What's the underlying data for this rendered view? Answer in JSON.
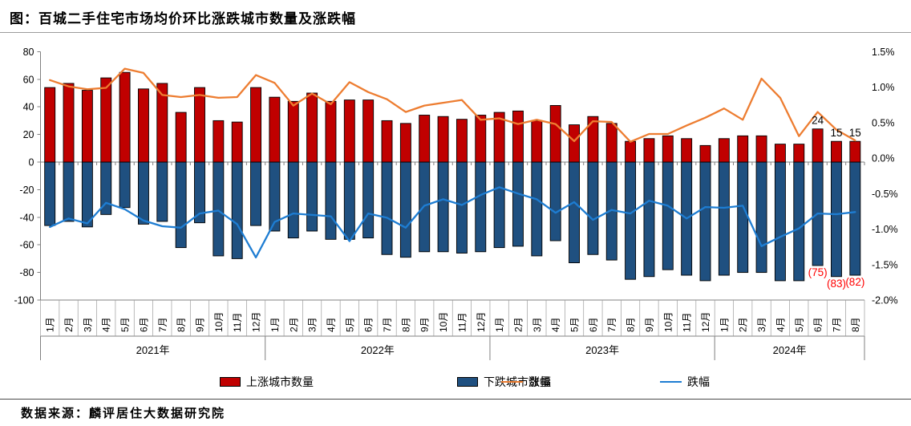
{
  "title": "图：百城二手住宅市场均价环比涨跌城市数量及涨跌幅",
  "source": "数据来源：麟评居住大数据研究院",
  "legend": [
    {
      "label": "上涨城市数量",
      "type": "swatch",
      "color": "#C00000"
    },
    {
      "label": "下跌城市数量",
      "type": "swatch",
      "color": "#1F5080"
    },
    {
      "label": "涨幅",
      "type": "line",
      "color": "#ED7D31"
    },
    {
      "label": "跌幅",
      "type": "line",
      "color": "#1E7DD2"
    }
  ],
  "chart_data": {
    "type": "bar",
    "subtype": "combo-bar-line-dual-axis",
    "years": [
      {
        "label": "2021年",
        "months": 12
      },
      {
        "label": "2022年",
        "months": 12
      },
      {
        "label": "2023年",
        "months": 12
      },
      {
        "label": "2024年",
        "months": 8
      }
    ],
    "month_labels": [
      "1月",
      "2月",
      "3月",
      "4月",
      "5月",
      "6月",
      "7月",
      "8月",
      "9月",
      "10月",
      "11月",
      "12月"
    ],
    "left_axis": {
      "min": -100,
      "max": 80,
      "ticks": [
        80,
        60,
        40,
        20,
        0,
        -20,
        -40,
        -60,
        -80,
        -100
      ]
    },
    "right_axis": {
      "min": -2.0,
      "max": 1.5,
      "tick_labels": [
        "1.5%",
        "1.0%",
        "0.5%",
        "0.0%",
        "-0.5%",
        "-1.0%",
        "-1.5%",
        "-2.0%"
      ]
    },
    "grid": "off",
    "legend_position": "bottom",
    "series": [
      {
        "name": "上涨城市数量",
        "type": "bar",
        "axis": "left",
        "color": "#C00000",
        "values": [
          54,
          57,
          52,
          61,
          65,
          53,
          57,
          36,
          54,
          30,
          29,
          54,
          47,
          44,
          50,
          44,
          45,
          45,
          30,
          28,
          34,
          33,
          31,
          34,
          36,
          37,
          30,
          41,
          27,
          33,
          28,
          15,
          17,
          19,
          17,
          12,
          17,
          19,
          19,
          13,
          13,
          24,
          15,
          15
        ]
      },
      {
        "name": "下跌城市数量",
        "type": "bar",
        "axis": "left",
        "color": "#1F5080",
        "values": [
          -46,
          -43,
          -47,
          -38,
          -33,
          -45,
          -43,
          -62,
          -44,
          -68,
          -70,
          -46,
          -50,
          -55,
          -50,
          -56,
          -56,
          -55,
          -67,
          -69,
          -65,
          -65,
          -66,
          -65,
          -62,
          -61,
          -68,
          -57,
          -73,
          -67,
          -71,
          -85,
          -83,
          -78,
          -82,
          -86,
          -82,
          -80,
          -80,
          -86,
          -86,
          -75,
          -83,
          -82
        ]
      },
      {
        "name": "涨幅",
        "type": "line",
        "axis": "right",
        "color": "#ED7D31",
        "values": [
          1.1,
          1.01,
          0.97,
          0.99,
          1.26,
          1.2,
          0.89,
          0.86,
          0.89,
          0.85,
          0.86,
          1.17,
          1.06,
          0.74,
          0.91,
          0.76,
          1.07,
          0.93,
          0.83,
          0.65,
          0.74,
          0.78,
          0.82,
          0.54,
          0.56,
          0.48,
          0.54,
          0.48,
          0.24,
          0.52,
          0.51,
          0.23,
          0.34,
          0.34,
          0.46,
          0.57,
          0.7,
          0.54,
          1.12,
          0.85,
          0.31,
          0.65,
          0.4,
          0.25
        ]
      },
      {
        "name": "跌幅",
        "type": "line",
        "axis": "right",
        "color": "#1E7DD2",
        "values": [
          -0.97,
          -0.85,
          -0.92,
          -0.63,
          -0.72,
          -0.88,
          -0.96,
          -0.98,
          -0.78,
          -0.74,
          -0.93,
          -1.4,
          -0.9,
          -0.78,
          -0.8,
          -0.82,
          -1.17,
          -0.78,
          -0.84,
          -0.98,
          -0.67,
          -0.58,
          -0.66,
          -0.52,
          -0.41,
          -0.5,
          -0.58,
          -0.77,
          -0.62,
          -0.87,
          -0.73,
          -0.78,
          -0.6,
          -0.67,
          -0.85,
          -0.69,
          -0.7,
          -0.67,
          -1.24,
          -1.11,
          -0.99,
          -0.78,
          -0.79,
          -0.76
        ]
      }
    ],
    "annotations": [
      {
        "text": "24",
        "month_index": 41,
        "position": "above",
        "color": "#000000"
      },
      {
        "text": "15",
        "month_index": 42,
        "position": "above",
        "color": "#000000"
      },
      {
        "text": "15",
        "month_index": 43,
        "position": "above",
        "color": "#000000"
      },
      {
        "text": "(75)",
        "month_index": 41,
        "position": "below",
        "color": "#FF0000"
      },
      {
        "text": "(83)",
        "month_index": 42,
        "position": "below",
        "color": "#FF0000"
      },
      {
        "text": "(82)",
        "month_index": 43,
        "position": "below",
        "color": "#FF0000"
      }
    ]
  }
}
